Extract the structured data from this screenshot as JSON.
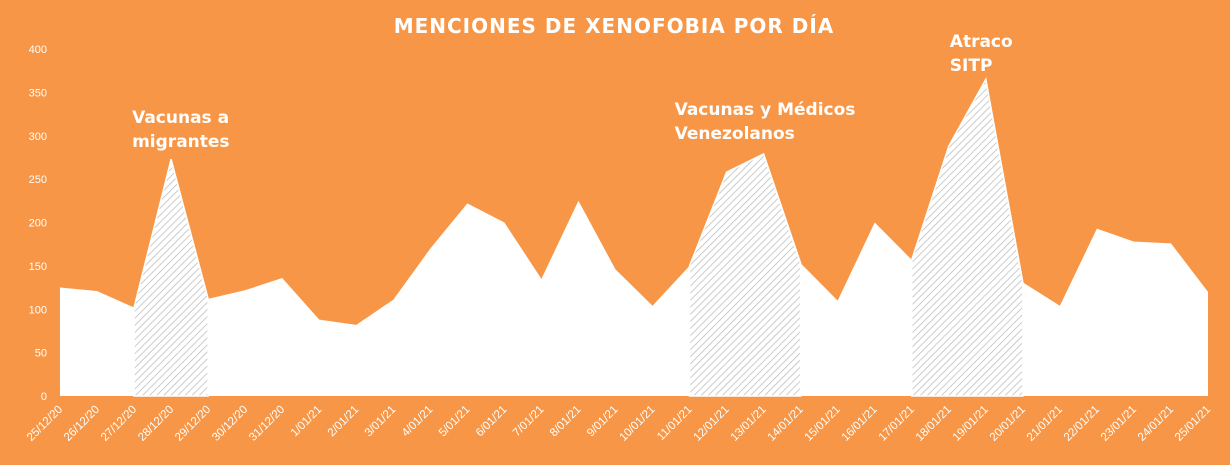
{
  "chart_data": {
    "type": "area",
    "title": "MENCIONES  DE  XENOFOBIA   POR  DÍA",
    "xlabel": "",
    "ylabel": "",
    "ylim": [
      0,
      400
    ],
    "yticks": [
      0,
      50,
      100,
      150,
      200,
      250,
      300,
      350,
      400
    ],
    "grid": false,
    "legend": "none",
    "categories": [
      "25/12/20",
      "26/12/20",
      "27/12/20",
      "28/12/20",
      "29/12/20",
      "30/12/20",
      "31/12/20",
      "1/01/21",
      "2/01/21",
      "3/01/21",
      "4/01/21",
      "5/01/21",
      "6/01/21",
      "7/01/21",
      "8/01/21",
      "9/01/21",
      "10/01/21",
      "11/01/21",
      "12/01/21",
      "13/01/21",
      "14/01/21",
      "15/01/21",
      "16/01/21",
      "17/01/21",
      "18/01/21",
      "19/01/21",
      "20/01/21",
      "21/01/21",
      "22/01/21",
      "23/01/21",
      "24/01/21",
      "25/01/21"
    ],
    "values": [
      125,
      121,
      102,
      273,
      112,
      122,
      136,
      88,
      82,
      111,
      170,
      222,
      200,
      135,
      225,
      146,
      104,
      150,
      258,
      279,
      153,
      110,
      200,
      157,
      288,
      365,
      131,
      104,
      193,
      178,
      176,
      120
    ],
    "highlight_ranges": [
      [
        2,
        4
      ],
      [
        17,
        20
      ],
      [
        23,
        26
      ]
    ],
    "annotations": [
      {
        "text": "Vacunas a migrantes",
        "lines": [
          "Vacunas a",
          "migrantes"
        ],
        "index": 3
      },
      {
        "text": "Vacunas y Médicos Venezolanos",
        "lines": [
          "Vacunas y Médicos",
          "Venezolanos"
        ],
        "index": 19
      },
      {
        "text": "Atraco SITP",
        "lines": [
          "Atraco",
          "SITP"
        ],
        "index": 25
      }
    ]
  },
  "colors": {
    "background": "#F79646",
    "fill": "#FFFFFF",
    "hatch": "#BFBFBF",
    "text": "#FFFFFF"
  }
}
